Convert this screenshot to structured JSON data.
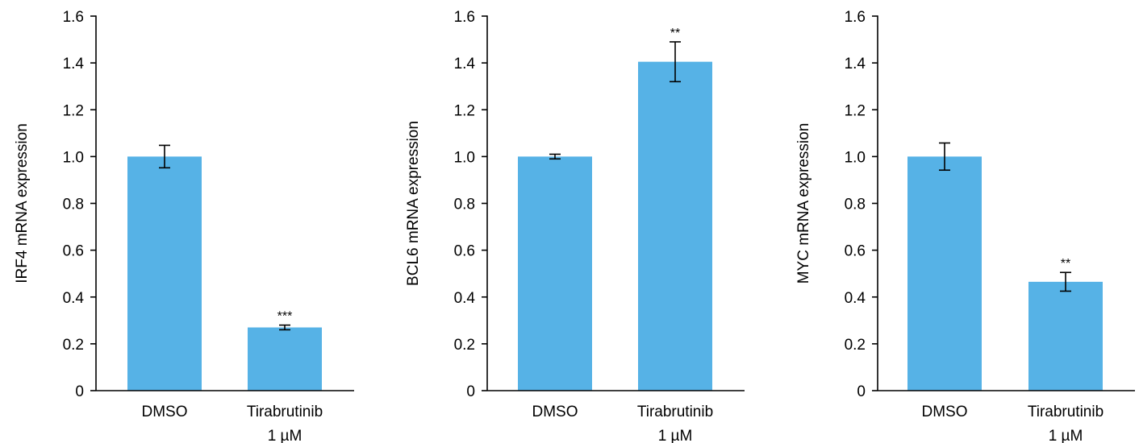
{
  "bar_color": "#56B2E6",
  "chart_data": [
    {
      "type": "bar",
      "ylabel": "IRF4 mRNA expression",
      "ylim": [
        0,
        1.6
      ],
      "yticks": [
        "0",
        "0.2",
        "0.4",
        "0.6",
        "0.8",
        "1.0",
        "1.2",
        "1.4",
        "1.6"
      ],
      "categories": [
        [
          "DMSO"
        ],
        [
          "Tirabrutinib",
          "1 µM"
        ]
      ],
      "values": [
        1.0,
        0.27
      ],
      "errors": [
        0.048,
        0.01
      ],
      "significance": [
        "",
        "***"
      ]
    },
    {
      "type": "bar",
      "ylabel": "BCL6 mRNA expression",
      "ylim": [
        0,
        1.6
      ],
      "yticks": [
        "0",
        "0.2",
        "0.4",
        "0.6",
        "0.8",
        "1.0",
        "1.2",
        "1.4",
        "1.6"
      ],
      "categories": [
        [
          "DMSO"
        ],
        [
          "Tirabrutinib",
          "1 µM"
        ]
      ],
      "values": [
        1.0,
        1.405
      ],
      "errors": [
        0.01,
        0.085
      ],
      "significance": [
        "",
        "**"
      ]
    },
    {
      "type": "bar",
      "ylabel": "MYC mRNA expression",
      "ylim": [
        0,
        1.6
      ],
      "yticks": [
        "0",
        "0.2",
        "0.4",
        "0.6",
        "0.8",
        "1.0",
        "1.2",
        "1.4",
        "1.6"
      ],
      "categories": [
        [
          "DMSO"
        ],
        [
          "Tirabrutinib",
          "1 µM"
        ]
      ],
      "values": [
        1.0,
        0.465
      ],
      "errors": [
        0.058,
        0.04
      ],
      "significance": [
        "",
        "**"
      ]
    }
  ]
}
